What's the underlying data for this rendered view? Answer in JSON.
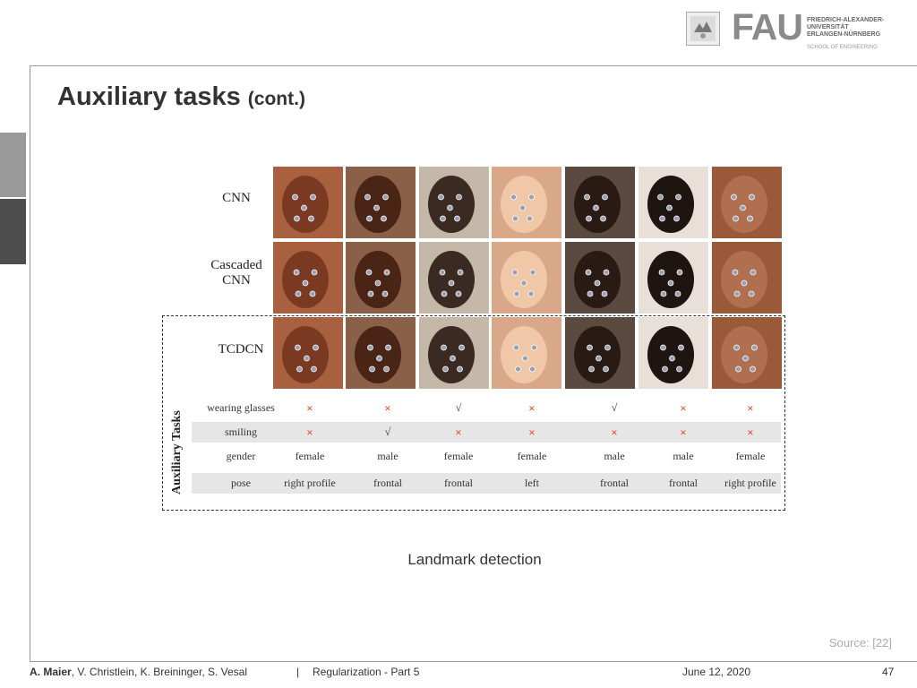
{
  "header": {
    "logo_text": "FAU",
    "university_lines": [
      "FRIEDRICH-ALEXANDER-",
      "UNIVERSITÄT",
      "ERLANGEN-NÜRNBERG"
    ],
    "school": "SCHOOL OF ENGINEERING"
  },
  "slide": {
    "title": "Auxiliary tasks",
    "title_suffix": "(cont.)",
    "caption": "Landmark detection",
    "source": "Source: [22]"
  },
  "figure": {
    "row_labels": [
      "CNN",
      "Cascaded CNN",
      "TCDCN"
    ],
    "aux_label": "Auxiliary Tasks",
    "skin_colors": [
      "#7a3a22",
      "#4a2414",
      "#3a2a22",
      "#f0c8a8",
      "#2a1a14",
      "#1e1410",
      "#b07050"
    ],
    "table": [
      {
        "label": "wearing glasses",
        "values": [
          "×",
          "×",
          "√",
          "×",
          "√",
          "×",
          "×"
        ]
      },
      {
        "label": "smiling",
        "values": [
          "×",
          "√",
          "×",
          "×",
          "×",
          "×",
          "×"
        ]
      },
      {
        "label": "gender",
        "values": [
          "female",
          "male",
          "female",
          "female",
          "male",
          "male",
          "female"
        ]
      },
      {
        "label": "pose",
        "values": [
          "right profile",
          "frontal",
          "frontal",
          "left",
          "frontal",
          "frontal",
          "right profile"
        ]
      }
    ]
  },
  "footer": {
    "author_main": "A. Maier",
    "authors_rest": ", V. Christlein, K. Breininger, S. Vesal",
    "separator": "|",
    "lecture": "Regularization - Part 5",
    "date": "June 12, 2020",
    "page": "47"
  }
}
